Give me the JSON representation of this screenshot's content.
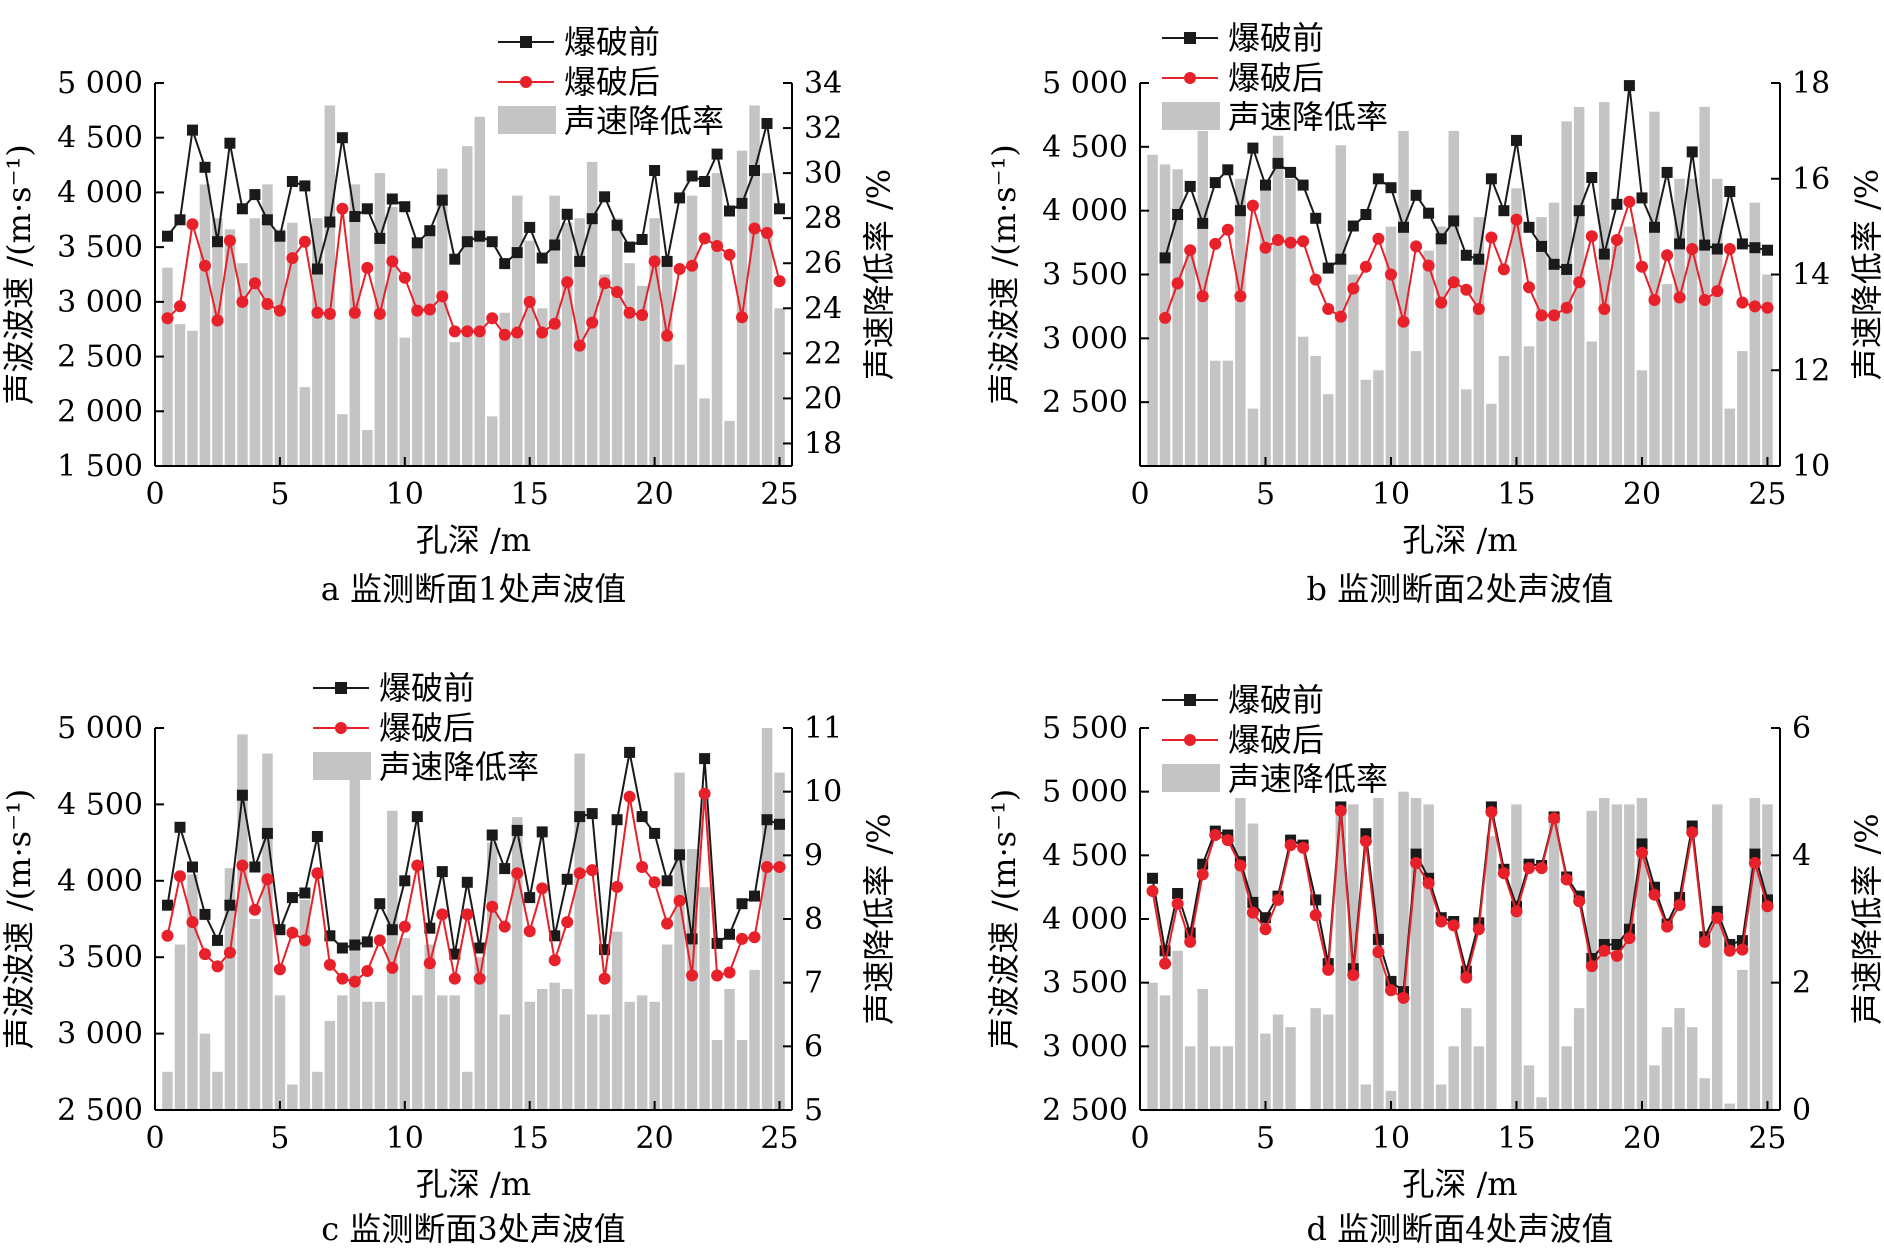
{
  "legend": {
    "before": "爆破前",
    "after": "爆破后",
    "rate": "声速降低率"
  },
  "colors": {
    "before": "#1a1a1a",
    "after": "#e8202a",
    "bar": "#c4c4c4"
  },
  "chart_data": [
    {
      "type": "bar+line",
      "caption": "a 监测断面1处声波值",
      "xlabel": "孔深 /m",
      "ylabel": "声波波速 /(m·s⁻¹)",
      "y2label": "声速降低率 /%",
      "xlim": [
        0,
        25.5
      ],
      "ylim": [
        1500,
        5000
      ],
      "y2lim": [
        17,
        34
      ],
      "xticks": [
        0,
        5,
        10,
        15,
        20,
        25
      ],
      "xtick_labels": [
        "0",
        "5",
        "10",
        "15",
        "20",
        "25"
      ],
      "yticks": [
        1500,
        2000,
        2500,
        3000,
        3500,
        4000,
        4500,
        5000
      ],
      "ytick_labels": [
        "1 500",
        "2 000",
        "2 500",
        "3 000",
        "3 500",
        "4 000",
        "4 500",
        "5 000"
      ],
      "y2ticks": [
        18,
        20,
        22,
        24,
        26,
        28,
        30,
        32,
        34
      ],
      "y2tick_labels": [
        "18",
        "20",
        "22",
        "24",
        "26",
        "28",
        "30",
        "32",
        "34"
      ],
      "depth": [
        0.5,
        1.0,
        1.5,
        2.0,
        2.5,
        3.0,
        3.5,
        4.0,
        4.5,
        5.0,
        5.5,
        6.0,
        6.5,
        7.0,
        7.5,
        8.0,
        8.5,
        9.0,
        9.5,
        10.0,
        10.5,
        11.0,
        11.5,
        12.0,
        12.5,
        13.0,
        13.5,
        14.0,
        14.5,
        15.0,
        15.5,
        16.0,
        16.5,
        17.0,
        17.5,
        18.0,
        18.5,
        19.0,
        19.5,
        20.0,
        20.5,
        21.0,
        21.5,
        22.0,
        22.5,
        23.0,
        23.5,
        24.0,
        24.5,
        25.0
      ],
      "series": [
        {
          "name": "爆破前",
          "values": [
            3600,
            3750,
            4570,
            4230,
            3550,
            4450,
            3850,
            3980,
            3750,
            3600,
            4100,
            4060,
            3300,
            3730,
            4500,
            3780,
            3850,
            3580,
            3940,
            3870,
            3540,
            3650,
            3930,
            3390,
            3550,
            3600,
            3550,
            3350,
            3450,
            3680,
            3400,
            3520,
            3800,
            3370,
            3760,
            3960,
            3700,
            3500,
            3570,
            4200,
            3370,
            3950,
            4150,
            4100,
            4350,
            3830,
            3900,
            4200,
            4630,
            3850
          ]
        },
        {
          "name": "爆破后",
          "values": [
            2850,
            2960,
            3710,
            3330,
            2830,
            3560,
            3000,
            3170,
            2980,
            2920,
            3400,
            3550,
            2900,
            2890,
            3850,
            2900,
            3310,
            2890,
            3370,
            3220,
            2920,
            2930,
            3050,
            2730,
            2730,
            2730,
            2850,
            2700,
            2720,
            3000,
            2720,
            2800,
            3180,
            2600,
            2810,
            3170,
            3090,
            2900,
            2880,
            3370,
            2690,
            3300,
            3330,
            3580,
            3510,
            3430,
            2860,
            3670,
            3630,
            3190
          ]
        },
        {
          "name": "声速降低率",
          "values": [
            25.8,
            23.3,
            23.0,
            29.5,
            28.0,
            27.5,
            26.0,
            28.0,
            29.5,
            27.5,
            27.8,
            20.5,
            28.0,
            33.0,
            19.3,
            29.5,
            18.6,
            30.0,
            28.5,
            22.7,
            27.0,
            27.5,
            30.2,
            22.5,
            31.2,
            32.5,
            19.2,
            23.8,
            29.0,
            27.0,
            24.0,
            29.0,
            27.8,
            28.0,
            30.5,
            25.5,
            28.0,
            26.0,
            25.0,
            28.0,
            26.0,
            21.5,
            29.0,
            20.0,
            30.0,
            19.0,
            31.0,
            33.0,
            30.0,
            24.0
          ]
        }
      ]
    },
    {
      "type": "bar+line",
      "caption": "b 监测断面2处声波值",
      "xlabel": "孔深 /m",
      "ylabel": "声波波速 /(m·s⁻¹)",
      "y2label": "声速降低率 /%",
      "xlim": [
        0,
        25.5
      ],
      "ylim": [
        2000,
        5000
      ],
      "y2lim": [
        10,
        18
      ],
      "xticks": [
        0,
        5,
        10,
        15,
        20,
        25
      ],
      "xtick_labels": [
        "0",
        "5",
        "10",
        "15",
        "20",
        "25"
      ],
      "yticks": [
        2500,
        3000,
        3500,
        4000,
        4500,
        5000
      ],
      "ytick_labels": [
        "2 500",
        "3 000",
        "3 500",
        "4 000",
        "4 500",
        "5 000"
      ],
      "y2ticks": [
        10,
        12,
        14,
        16,
        18
      ],
      "y2tick_labels": [
        "10",
        "12",
        "14",
        "16",
        "18"
      ],
      "depth": [
        0.5,
        1.0,
        1.5,
        2.0,
        2.5,
        3.0,
        3.5,
        4.0,
        4.5,
        5.0,
        5.5,
        6.0,
        6.5,
        7.0,
        7.5,
        8.0,
        8.5,
        9.0,
        9.5,
        10.0,
        10.5,
        11.0,
        11.5,
        12.0,
        12.5,
        13.0,
        13.5,
        14.0,
        14.5,
        15.0,
        15.5,
        16.0,
        16.5,
        17.0,
        17.5,
        18.0,
        18.5,
        19.0,
        19.5,
        20.0,
        20.5,
        21.0,
        21.5,
        22.0,
        22.5,
        23.0,
        23.5,
        24.0,
        24.5,
        25.0
      ],
      "series": [
        {
          "name": "爆破前",
          "values": [
            null,
            3630,
            3970,
            4190,
            3900,
            4220,
            4320,
            4000,
            4490,
            4200,
            4370,
            4300,
            4200,
            3940,
            3550,
            3620,
            3880,
            3970,
            4250,
            4180,
            3870,
            4120,
            3980,
            3780,
            3920,
            3650,
            3620,
            4250,
            4000,
            4550,
            3870,
            3720,
            3580,
            3540,
            4000,
            4260,
            3660,
            4050,
            4980,
            4100,
            3870,
            4300,
            3740,
            4460,
            3730,
            3700,
            4150,
            3740,
            3710,
            3690
          ]
        },
        {
          "name": "爆破后",
          "values": [
            null,
            3160,
            3430,
            3690,
            3330,
            3740,
            3850,
            3330,
            4040,
            3710,
            3770,
            3750,
            3760,
            3460,
            3230,
            3170,
            3390,
            3560,
            3780,
            3500,
            3130,
            3720,
            3570,
            3280,
            3440,
            3380,
            3230,
            3790,
            3540,
            3930,
            3400,
            3180,
            3180,
            3240,
            3440,
            3800,
            3230,
            3770,
            4070,
            3560,
            3300,
            3650,
            3320,
            3700,
            3300,
            3370,
            3700,
            3280,
            3250,
            3240
          ]
        },
        {
          "name": "声速降低率",
          "values": [
            16.5,
            16.3,
            16.2,
            14.4,
            17.0,
            12.2,
            12.2,
            16.0,
            11.2,
            15.8,
            16.9,
            16.0,
            12.7,
            12.3,
            11.5,
            16.7,
            14.0,
            11.8,
            12.0,
            15.0,
            17.0,
            12.4,
            14.5,
            15.0,
            17.0,
            11.6,
            15.2,
            11.3,
            12.3,
            15.8,
            12.5,
            15.2,
            15.5,
            17.2,
            17.5,
            12.6,
            17.6,
            14.6,
            15.0,
            12.0,
            17.4,
            13.8,
            16.0,
            16.0,
            17.5,
            16.0,
            11.2,
            12.4,
            15.5,
            14.0
          ]
        }
      ]
    },
    {
      "type": "bar+line",
      "caption": "c 监测断面3处声波值",
      "xlabel": "孔深 /m",
      "ylabel": "声波波速 /(m·s⁻¹)",
      "y2label": "声速降低率 /%",
      "xlim": [
        0,
        25.5
      ],
      "ylim": [
        2500,
        5000
      ],
      "y2lim": [
        5,
        11
      ],
      "xticks": [
        0,
        5,
        10,
        15,
        20,
        25
      ],
      "xtick_labels": [
        "0",
        "5",
        "10",
        "15",
        "20",
        "25"
      ],
      "yticks": [
        2500,
        3000,
        3500,
        4000,
        4500,
        5000
      ],
      "ytick_labels": [
        "2 500",
        "3 000",
        "3 500",
        "4 000",
        "4 500",
        "5 000"
      ],
      "y2ticks": [
        5,
        6,
        7,
        8,
        9,
        10,
        11
      ],
      "y2tick_labels": [
        "5",
        "6",
        "7",
        "8",
        "9",
        "10",
        "11"
      ],
      "depth": [
        0.5,
        1.0,
        1.5,
        2.0,
        2.5,
        3.0,
        3.5,
        4.0,
        4.5,
        5.0,
        5.5,
        6.0,
        6.5,
        7.0,
        7.5,
        8.0,
        8.5,
        9.0,
        9.5,
        10.0,
        10.5,
        11.0,
        11.5,
        12.0,
        12.5,
        13.0,
        13.5,
        14.0,
        14.5,
        15.0,
        15.5,
        16.0,
        16.5,
        17.0,
        17.5,
        18.0,
        18.5,
        19.0,
        19.5,
        20.0,
        20.5,
        21.0,
        21.5,
        22.0,
        22.5,
        23.0,
        23.5,
        24.0,
        24.5,
        25.0
      ],
      "series": [
        {
          "name": "爆破前",
          "values": [
            3840,
            4350,
            4090,
            3780,
            3610,
            3840,
            4560,
            4090,
            4310,
            3680,
            3890,
            3920,
            4290,
            3640,
            3560,
            3580,
            3600,
            3850,
            3680,
            4000,
            4420,
            3690,
            4060,
            3520,
            3990,
            3560,
            4300,
            4080,
            4330,
            3890,
            4320,
            3640,
            4010,
            4420,
            4440,
            3550,
            4400,
            4840,
            4420,
            4310,
            4000,
            4170,
            3620,
            4800,
            3590,
            3650,
            3850,
            3900,
            4400,
            4370
          ]
        },
        {
          "name": "爆破后",
          "values": [
            3640,
            4030,
            3730,
            3520,
            3440,
            3530,
            4100,
            3810,
            4010,
            3420,
            3660,
            3610,
            4050,
            3450,
            3360,
            3340,
            3410,
            3610,
            3430,
            3700,
            4100,
            3460,
            3780,
            3360,
            3780,
            3360,
            3830,
            3700,
            4050,
            3670,
            3950,
            3480,
            3730,
            4050,
            4070,
            3360,
            3960,
            4550,
            4090,
            3990,
            3720,
            3870,
            3380,
            4570,
            3380,
            3400,
            3620,
            3630,
            4090,
            4090
          ]
        },
        {
          "name": "声速降低率",
          "values": [
            5.6,
            7.6,
            8.7,
            6.2,
            5.6,
            8.8,
            10.9,
            8.0,
            10.6,
            6.8,
            5.4,
            8.3,
            5.6,
            6.4,
            6.8,
            10.3,
            6.7,
            6.7,
            9.7,
            7.7,
            6.8,
            7.6,
            6.8,
            6.8,
            5.6,
            7.4,
            9.2,
            6.5,
            9.6,
            6.7,
            6.9,
            7.0,
            6.9,
            10.6,
            6.5,
            6.5,
            7.8,
            6.7,
            6.8,
            6.7,
            7.6,
            10.3,
            9.1,
            8.5,
            6.1,
            6.9,
            6.1,
            7.2,
            11.0,
            10.3
          ]
        }
      ]
    },
    {
      "type": "bar+line",
      "caption": "d 监测断面4处声波值",
      "xlabel": "孔深 /m",
      "ylabel": "声波波速 /(m·s⁻¹)",
      "y2label": "声速降低率 /%",
      "xlim": [
        0,
        25.5
      ],
      "ylim": [
        2500,
        5500
      ],
      "y2lim": [
        0,
        6
      ],
      "xticks": [
        0,
        5,
        10,
        15,
        20,
        25
      ],
      "xtick_labels": [
        "0",
        "5",
        "10",
        "15",
        "20",
        "25"
      ],
      "yticks": [
        2500,
        3000,
        3500,
        4000,
        4500,
        5000,
        5500
      ],
      "ytick_labels": [
        "2 500",
        "3 000",
        "3 500",
        "4 000",
        "4 500",
        "5 000",
        "5 500"
      ],
      "y2ticks": [
        0,
        2,
        4,
        6
      ],
      "y2tick_labels": [
        "0",
        "2",
        "4",
        "6"
      ],
      "depth": [
        0.5,
        1.0,
        1.5,
        2.0,
        2.5,
        3.0,
        3.5,
        4.0,
        4.5,
        5.0,
        5.5,
        6.0,
        6.5,
        7.0,
        7.5,
        8.0,
        8.5,
        9.0,
        9.5,
        10.0,
        10.5,
        11.0,
        11.5,
        12.0,
        12.5,
        13.0,
        13.5,
        14.0,
        14.5,
        15.0,
        15.5,
        16.0,
        16.5,
        17.0,
        17.5,
        18.0,
        18.5,
        19.0,
        19.5,
        20.0,
        20.5,
        21.0,
        21.5,
        22.0,
        22.5,
        23.0,
        23.5,
        24.0,
        24.5,
        25.0
      ],
      "series": [
        {
          "name": "爆破前",
          "values": [
            4320,
            3750,
            4200,
            3890,
            4430,
            4690,
            4660,
            4450,
            4130,
            4010,
            4180,
            4620,
            4580,
            4150,
            3650,
            4880,
            3610,
            4670,
            3840,
            3510,
            3430,
            4510,
            4320,
            4010,
            3980,
            3590,
            3970,
            4880,
            4390,
            4100,
            4430,
            4420,
            4800,
            4330,
            4180,
            3690,
            3800,
            3800,
            3920,
            4590,
            4250,
            3960,
            4170,
            4730,
            3860,
            4060,
            3800,
            3830,
            4510,
            4150
          ]
        },
        {
          "name": "爆破后",
          "values": [
            4220,
            3650,
            4120,
            3820,
            4350,
            4660,
            4620,
            4420,
            4050,
            3920,
            4150,
            4580,
            4560,
            4030,
            3600,
            4850,
            3560,
            4610,
            3740,
            3440,
            3380,
            4440,
            4280,
            3980,
            3950,
            3540,
            3920,
            4840,
            4360,
            4060,
            4400,
            4400,
            4790,
            4310,
            4140,
            3630,
            3750,
            3710,
            3850,
            4520,
            4190,
            3940,
            4110,
            4680,
            3820,
            4010,
            3750,
            3760,
            4440,
            4100
          ]
        },
        {
          "name": "声速降低率",
          "values": [
            2.0,
            1.8,
            2.5,
            1.0,
            1.9,
            1.0,
            1.0,
            4.9,
            4.5,
            1.2,
            1.5,
            1.3,
            0.0,
            1.6,
            1.5,
            4.8,
            4.8,
            0.4,
            4.9,
            0.3,
            5.0,
            4.9,
            4.8,
            0.4,
            1.0,
            1.6,
            1.0,
            4.3,
            0.0,
            4.8,
            0.7,
            0.2,
            4.7,
            1.0,
            1.6,
            4.7,
            4.9,
            4.8,
            4.8,
            4.9,
            0.7,
            1.3,
            1.6,
            1.3,
            0.5,
            4.8,
            0.1,
            2.2,
            4.9,
            4.8
          ]
        }
      ]
    }
  ]
}
